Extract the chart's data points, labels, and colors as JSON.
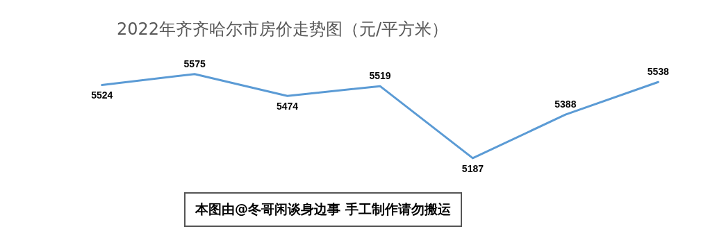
{
  "chart_data": {
    "type": "line",
    "title": "2022年齐齐哈尔市房价走势图（元/平方米）",
    "categories": [
      null,
      null,
      null,
      null,
      null,
      null,
      null
    ],
    "series": [
      {
        "color": "#5b9bd5",
        "values": [
          5524,
          5575,
          5474,
          5519,
          5187,
          5388,
          5538
        ]
      }
    ],
    "data_labels": true,
    "marker": "none",
    "legend": false,
    "annotations": [
      "本图由@冬哥闲谈身边事 手工制作请勿搬运"
    ]
  }
}
